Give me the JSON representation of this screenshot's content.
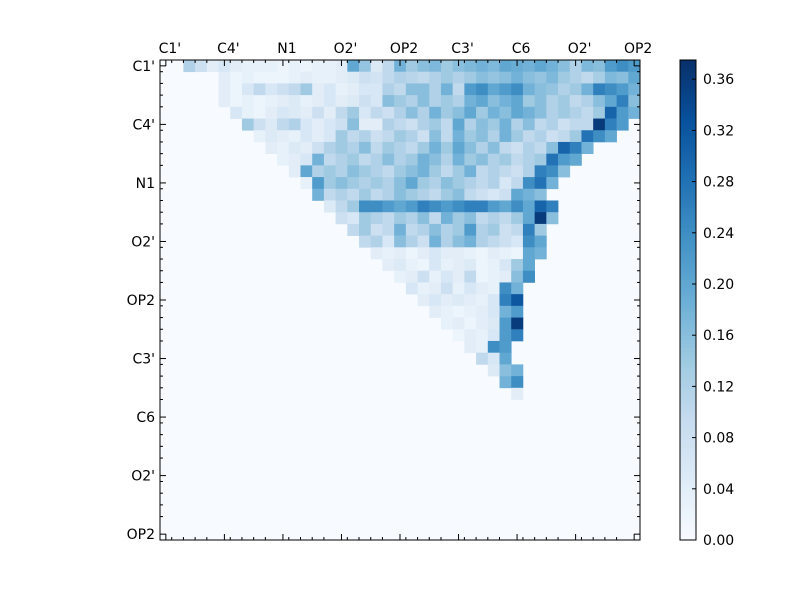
{
  "chart_data": {
    "type": "heatmap",
    "title": "",
    "xlabel": "",
    "ylabel": "",
    "matrix_size": 41,
    "triangle": "upper",
    "x_tick_labels": [
      "C1'",
      "C4'",
      "N1",
      "O2'",
      "OP2",
      "C3'",
      "C6",
      "O2'",
      "OP2"
    ],
    "y_tick_labels": [
      "C1'",
      "C4'",
      "N1",
      "O2'",
      "OP2",
      "C3'",
      "C6",
      "O2'",
      "OP2"
    ],
    "tick_label_indices": [
      0,
      5,
      10,
      15,
      20,
      25,
      30,
      35,
      40
    ],
    "colorbar": {
      "ticks": [
        "0.00",
        "0.04",
        "0.08",
        "0.12",
        "0.16",
        "0.20",
        "0.24",
        "0.28",
        "0.32",
        "0.36"
      ],
      "tick_values": [
        0.0,
        0.04,
        0.08,
        0.12,
        0.16,
        0.2,
        0.24,
        0.28,
        0.32,
        0.36
      ],
      "range": [
        0.0,
        0.375
      ],
      "colormap": "Blues"
    },
    "grid": false,
    "legend": "colorbar-right",
    "rows": [
      {
        "i": 0,
        "start": 1,
        "values": [
          0.0,
          0.12,
          0.08,
          0.04,
          0.06,
          0.04,
          0.03,
          0.03,
          0.03,
          0.02,
          0.03,
          0.02,
          0.03,
          0.03,
          0.04,
          0.2,
          0.15,
          0.05,
          0.1,
          0.18,
          0.14,
          0.16,
          0.17,
          0.14,
          0.16,
          0.17,
          0.18,
          0.17,
          0.2,
          0.19,
          0.18,
          0.2,
          0.18,
          0.16,
          0.12,
          0.17,
          0.16,
          0.22,
          0.24,
          0.22
        ]
      },
      {
        "i": 1,
        "start": 2,
        "values": [
          0.0,
          0.0,
          0.0,
          0.04,
          0.02,
          0.03,
          0.02,
          0.02,
          0.02,
          0.03,
          0.04,
          0.03,
          0.03,
          0.04,
          0.05,
          0.08,
          0.07,
          0.1,
          0.12,
          0.11,
          0.1,
          0.12,
          0.14,
          0.12,
          0.14,
          0.16,
          0.15,
          0.16,
          0.18,
          0.16,
          0.15,
          0.17,
          0.14,
          0.12,
          0.1,
          0.13,
          0.17,
          0.16,
          0.2
        ]
      },
      {
        "i": 2,
        "start": 3,
        "values": [
          0.0,
          0.0,
          0.04,
          0.02,
          0.06,
          0.1,
          0.06,
          0.08,
          0.1,
          0.14,
          0.04,
          0.06,
          0.03,
          0.04,
          0.06,
          0.06,
          0.12,
          0.1,
          0.16,
          0.16,
          0.12,
          0.18,
          0.1,
          0.22,
          0.24,
          0.2,
          0.22,
          0.24,
          0.18,
          0.16,
          0.15,
          0.12,
          0.14,
          0.18,
          0.26,
          0.24,
          0.22,
          0.18
        ]
      },
      {
        "i": 3,
        "start": 4,
        "values": [
          0.0,
          0.04,
          0.02,
          0.03,
          0.02,
          0.03,
          0.04,
          0.05,
          0.03,
          0.04,
          0.06,
          0.04,
          0.05,
          0.08,
          0.06,
          0.16,
          0.14,
          0.12,
          0.16,
          0.12,
          0.14,
          0.12,
          0.18,
          0.2,
          0.16,
          0.18,
          0.2,
          0.14,
          0.16,
          0.12,
          0.14,
          0.1,
          0.12,
          0.16,
          0.2,
          0.26,
          0.16
        ]
      },
      {
        "i": 4,
        "start": 5,
        "values": [
          0.0,
          0.06,
          0.03,
          0.02,
          0.04,
          0.06,
          0.05,
          0.04,
          0.08,
          0.04,
          0.1,
          0.14,
          0.06,
          0.1,
          0.08,
          0.12,
          0.16,
          0.12,
          0.18,
          0.14,
          0.16,
          0.2,
          0.14,
          0.18,
          0.16,
          0.2,
          0.18,
          0.16,
          0.12,
          0.14,
          0.12,
          0.1,
          0.14,
          0.3,
          0.22,
          0.18
        ]
      },
      {
        "i": 5,
        "start": 6,
        "values": [
          0.0,
          0.14,
          0.08,
          0.05,
          0.1,
          0.12,
          0.06,
          0.04,
          0.06,
          0.08,
          0.16,
          0.04,
          0.04,
          0.12,
          0.1,
          0.08,
          0.12,
          0.14,
          0.1,
          0.2,
          0.12,
          0.16,
          0.14,
          0.18,
          0.12,
          0.16,
          0.1,
          0.12,
          0.08,
          0.1,
          0.1,
          0.36,
          0.26,
          0.22
        ]
      },
      {
        "i": 6,
        "start": 7,
        "values": [
          0.0,
          0.03,
          0.05,
          0.04,
          0.03,
          0.06,
          0.04,
          0.06,
          0.14,
          0.1,
          0.12,
          0.08,
          0.1,
          0.14,
          0.12,
          0.08,
          0.16,
          0.1,
          0.18,
          0.14,
          0.16,
          0.12,
          0.18,
          0.14,
          0.1,
          0.12,
          0.08,
          0.1,
          0.14,
          0.28,
          0.24,
          0.2
        ]
      },
      {
        "i": 7,
        "start": 8,
        "values": [
          0.0,
          0.04,
          0.03,
          0.05,
          0.04,
          0.08,
          0.12,
          0.14,
          0.12,
          0.16,
          0.1,
          0.14,
          0.12,
          0.1,
          0.14,
          0.18,
          0.14,
          0.2,
          0.16,
          0.12,
          0.16,
          0.1,
          0.08,
          0.12,
          0.1,
          0.16,
          0.3,
          0.26,
          0.18
        ]
      },
      {
        "i": 8,
        "start": 9,
        "values": [
          0.0,
          0.03,
          0.04,
          0.06,
          0.18,
          0.1,
          0.12,
          0.14,
          0.1,
          0.12,
          0.16,
          0.12,
          0.14,
          0.18,
          0.16,
          0.12,
          0.18,
          0.14,
          0.16,
          0.12,
          0.14,
          0.1,
          0.12,
          0.14,
          0.28,
          0.22,
          0.2
        ]
      },
      {
        "i": 9,
        "start": 10,
        "values": [
          0.0,
          0.04,
          0.2,
          0.12,
          0.14,
          0.12,
          0.16,
          0.14,
          0.12,
          0.1,
          0.14,
          0.16,
          0.18,
          0.14,
          0.1,
          0.14,
          0.18,
          0.1,
          0.12,
          0.1,
          0.08,
          0.12,
          0.26,
          0.24,
          0.16
        ]
      },
      {
        "i": 10,
        "start": 11,
        "values": [
          0.0,
          0.03,
          0.22,
          0.14,
          0.16,
          0.14,
          0.12,
          0.14,
          0.12,
          0.16,
          0.2,
          0.14,
          0.12,
          0.16,
          0.14,
          0.12,
          0.1,
          0.12,
          0.06,
          0.1,
          0.24,
          0.28,
          0.18
        ]
      },
      {
        "i": 11,
        "start": 12,
        "values": [
          0.0,
          0.18,
          0.1,
          0.12,
          0.1,
          0.14,
          0.1,
          0.12,
          0.16,
          0.14,
          0.12,
          0.1,
          0.14,
          0.16,
          0.1,
          0.08,
          0.06,
          0.08,
          0.2,
          0.18,
          0.16
        ]
      },
      {
        "i": 12,
        "start": 13,
        "values": [
          0.0,
          0.05,
          0.1,
          0.14,
          0.24,
          0.24,
          0.22,
          0.2,
          0.22,
          0.26,
          0.24,
          0.22,
          0.24,
          0.26,
          0.26,
          0.22,
          0.2,
          0.24,
          0.2,
          0.3,
          0.26
        ]
      },
      {
        "i": 13,
        "start": 14,
        "values": [
          0.0,
          0.08,
          0.06,
          0.14,
          0.12,
          0.1,
          0.14,
          0.12,
          0.16,
          0.1,
          0.18,
          0.14,
          0.16,
          0.1,
          0.12,
          0.1,
          0.14,
          0.2,
          0.36,
          0.16
        ]
      },
      {
        "i": 14,
        "start": 15,
        "values": [
          0.0,
          0.1,
          0.14,
          0.08,
          0.1,
          0.18,
          0.1,
          0.12,
          0.16,
          0.12,
          0.14,
          0.22,
          0.12,
          0.14,
          0.08,
          0.1,
          0.26,
          0.14
        ]
      },
      {
        "i": 15,
        "start": 16,
        "values": [
          0.0,
          0.1,
          0.12,
          0.06,
          0.16,
          0.12,
          0.08,
          0.18,
          0.12,
          0.16,
          0.18,
          0.12,
          0.1,
          0.08,
          0.06,
          0.24,
          0.2
        ]
      },
      {
        "i": 16,
        "start": 17,
        "values": [
          0.0,
          0.04,
          0.03,
          0.04,
          0.02,
          0.04,
          0.06,
          0.04,
          0.04,
          0.03,
          0.02,
          0.04,
          0.03,
          0.02,
          0.2,
          0.18
        ]
      },
      {
        "i": 17,
        "start": 18,
        "values": [
          0.0,
          0.04,
          0.05,
          0.03,
          0.02,
          0.06,
          0.03,
          0.04,
          0.05,
          0.02,
          0.03,
          0.06,
          0.14,
          0.2
        ]
      },
      {
        "i": 18,
        "start": 19,
        "values": [
          0.0,
          0.03,
          0.04,
          0.08,
          0.03,
          0.06,
          0.04,
          0.1,
          0.02,
          0.03,
          0.04,
          0.16,
          0.24
        ]
      },
      {
        "i": 19,
        "start": 20,
        "values": [
          0.0,
          0.06,
          0.03,
          0.04,
          0.08,
          0.03,
          0.06,
          0.04,
          0.03,
          0.24,
          0.18
        ]
      },
      {
        "i": 20,
        "start": 21,
        "values": [
          0.0,
          0.04,
          0.06,
          0.04,
          0.05,
          0.04,
          0.03,
          0.06,
          0.26,
          0.32
        ]
      },
      {
        "i": 21,
        "start": 22,
        "values": [
          0.0,
          0.04,
          0.03,
          0.02,
          0.03,
          0.04,
          0.06,
          0.18,
          0.22
        ]
      },
      {
        "i": 22,
        "start": 23,
        "values": [
          0.0,
          0.03,
          0.04,
          0.02,
          0.04,
          0.05,
          0.22,
          0.36
        ]
      },
      {
        "i": 23,
        "start": 24,
        "values": [
          0.0,
          0.02,
          0.04,
          0.03,
          0.06,
          0.22,
          0.26
        ]
      },
      {
        "i": 24,
        "start": 25,
        "values": [
          0.0,
          0.04,
          0.03,
          0.24,
          0.22
        ]
      },
      {
        "i": 25,
        "start": 26,
        "values": [
          0.0,
          0.1,
          0.06,
          0.2
        ]
      },
      {
        "i": 26,
        "start": 27,
        "values": [
          0.0,
          0.05,
          0.16,
          0.18
        ]
      },
      {
        "i": 27,
        "start": 28,
        "values": [
          0.0,
          0.18,
          0.24
        ]
      },
      {
        "i": 28,
        "start": 29,
        "values": [
          0.0,
          0.04
        ]
      }
    ]
  }
}
